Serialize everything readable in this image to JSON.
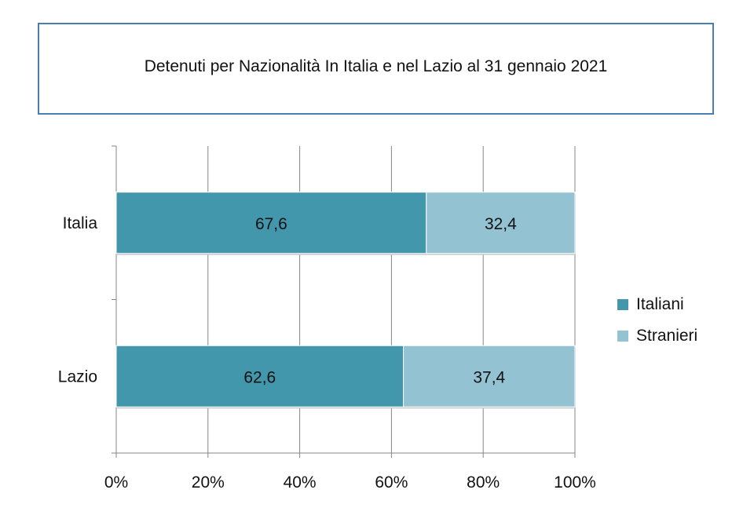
{
  "chart_data": {
    "type": "bar",
    "orientation": "horizontal",
    "stacked": true,
    "percent_stacked": true,
    "title": "Detenuti per Nazionalità In Italia e nel Lazio al 31 gennaio 2021",
    "categories": [
      "Italia",
      "Lazio"
    ],
    "series": [
      {
        "name": "Italiani",
        "values": [
          67.6,
          62.6
        ],
        "labels": [
          "67,6",
          "62,6"
        ],
        "color": "#4397ac"
      },
      {
        "name": "Stranieri",
        "values": [
          32.4,
          37.4
        ],
        "labels": [
          "32,4",
          "37,4"
        ],
        "color": "#93c3d3"
      }
    ],
    "xlim": [
      0,
      100
    ],
    "x_ticks": [
      "0%",
      "20%",
      "40%",
      "60%",
      "80%",
      "100%"
    ],
    "grid": true,
    "legend_position": "right"
  }
}
